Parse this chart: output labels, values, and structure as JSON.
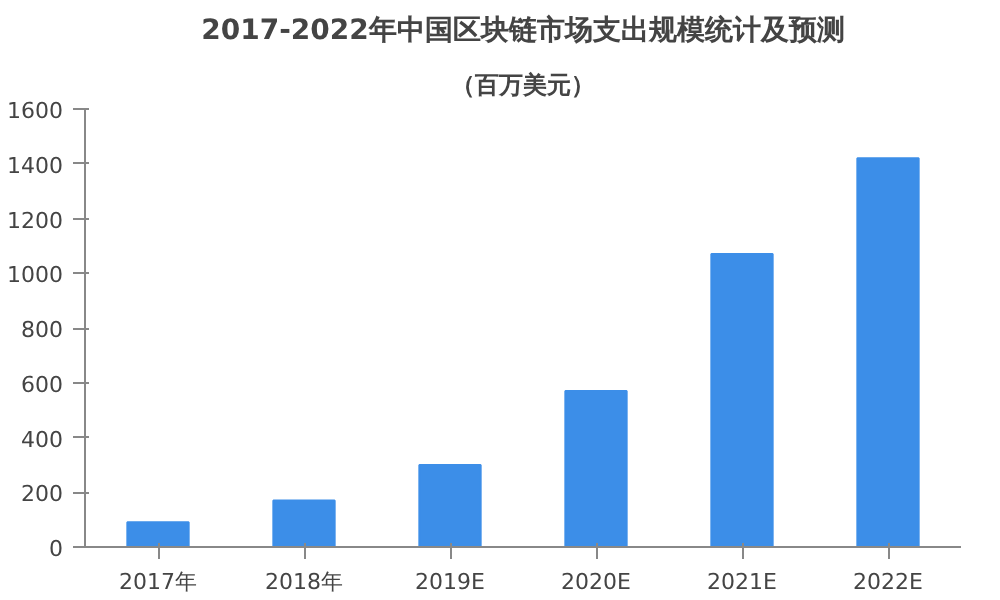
{
  "chart_data": {
    "type": "bar",
    "title": "2017-2022年中国区块链市场支出规模统计及预测",
    "subtitle": "（百万美元）",
    "categories": [
      "2017年",
      "2018年",
      "2019E",
      "2020E",
      "2021E",
      "2022E"
    ],
    "values": [
      90,
      170,
      300,
      570,
      1070,
      1420
    ],
    "color": "#3c8ee8",
    "ylim": [
      0,
      1600
    ],
    "yticks": [
      0,
      200,
      400,
      600,
      800,
      1000,
      1200,
      1400,
      1600
    ],
    "grid": false
  }
}
